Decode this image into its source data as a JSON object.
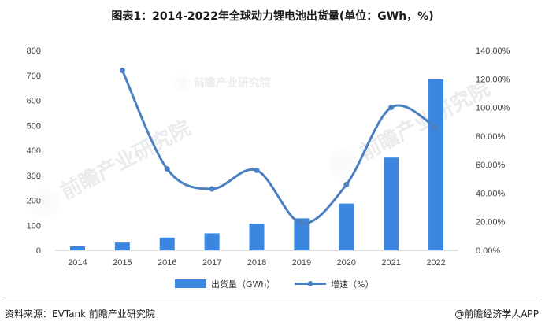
{
  "title": "图表1：2014-2022年全球动力锂电池出货量(单位：GWh，%)",
  "source": "资料来源：EVTank 前瞻产业研究院",
  "brand": "@前瞻经济学人APP",
  "watermark": "前瞻产业研究院",
  "colors": {
    "bar": "#3b86e0",
    "line": "#4a7fc0"
  },
  "chart_data": {
    "type": "bar+line",
    "categories": [
      "2014",
      "2015",
      "2016",
      "2017",
      "2018",
      "2019",
      "2020",
      "2021",
      "2022"
    ],
    "series": [
      {
        "name": "出货量（GWh）",
        "type": "bar",
        "axis": "left",
        "values": [
          16,
          31,
          51,
          68,
          107,
          128,
          187,
          371,
          684
        ]
      },
      {
        "name": "增速（%）",
        "type": "line",
        "axis": "right",
        "smooth": true,
        "values": [
          null,
          126,
          57,
          43,
          56,
          19,
          46,
          100,
          86
        ]
      }
    ],
    "y_left": {
      "min": 0,
      "max": 800,
      "step": 100,
      "ticks": [
        "0",
        "100",
        "200",
        "300",
        "400",
        "500",
        "600",
        "700",
        "800"
      ]
    },
    "y_right": {
      "min": 0,
      "max": 140,
      "step": 20,
      "ticks": [
        "0.00%",
        "20.00%",
        "40.00%",
        "60.00%",
        "80.00%",
        "100.00%",
        "120.00%",
        "140.00%"
      ]
    },
    "legend_position": "bottom",
    "grid": false
  }
}
